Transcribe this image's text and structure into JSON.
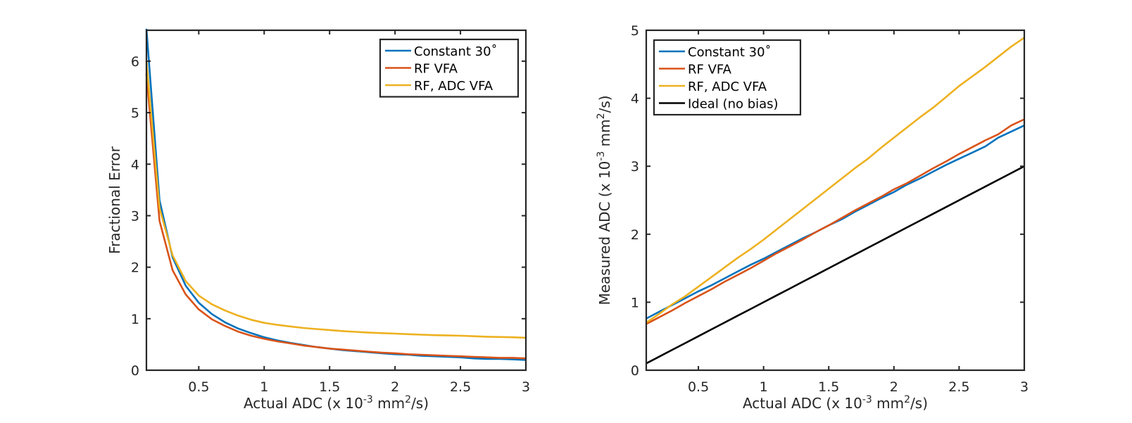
{
  "chart_data": [
    {
      "type": "line",
      "title": "",
      "xlabel": {
        "pre": "Actual ADC (x 10",
        "sup1": "-3",
        "mid": " mm",
        "sup2": "2",
        "post": "/s)"
      },
      "ylabel": "Fractional Error",
      "xlim": [
        0.1,
        3
      ],
      "ylim": [
        0,
        6.6
      ],
      "xticks": [
        "0.5",
        "1",
        "1.5",
        "2",
        "2.5",
        "3"
      ],
      "yticks": [
        "0",
        "1",
        "2",
        "3",
        "4",
        "5",
        "6"
      ],
      "grid": false,
      "legend_position": "top-right",
      "x": [
        0.1,
        0.2,
        0.3,
        0.4,
        0.5,
        0.6,
        0.7,
        0.8,
        0.9,
        1.0,
        1.1,
        1.2,
        1.3,
        1.4,
        1.5,
        1.6,
        1.7,
        1.8,
        1.9,
        2.0,
        2.1,
        2.2,
        2.3,
        2.4,
        2.5,
        2.6,
        2.7,
        2.8,
        2.9,
        3.0
      ],
      "series": [
        {
          "name": "Constant 30˚",
          "color": "#0072bd",
          "values": [
            6.63,
            3.3,
            2.19,
            1.64,
            1.31,
            1.09,
            0.93,
            0.81,
            0.72,
            0.64,
            0.58,
            0.53,
            0.49,
            0.45,
            0.42,
            0.39,
            0.37,
            0.35,
            0.33,
            0.31,
            0.3,
            0.28,
            0.27,
            0.26,
            0.25,
            0.23,
            0.22,
            0.22,
            0.21,
            0.2
          ]
        },
        {
          "name": "RF VFA",
          "color": "#d95319",
          "values": [
            5.75,
            2.9,
            1.94,
            1.47,
            1.18,
            0.99,
            0.86,
            0.75,
            0.67,
            0.61,
            0.56,
            0.52,
            0.48,
            0.45,
            0.42,
            0.4,
            0.38,
            0.36,
            0.34,
            0.33,
            0.31,
            0.3,
            0.29,
            0.28,
            0.27,
            0.26,
            0.25,
            0.24,
            0.24,
            0.23
          ]
        },
        {
          "name": "RF, ADC VFA",
          "color": "#edb120",
          "values": [
            6.0,
            3.15,
            2.23,
            1.73,
            1.45,
            1.28,
            1.16,
            1.06,
            0.98,
            0.92,
            0.88,
            0.85,
            0.82,
            0.8,
            0.78,
            0.76,
            0.745,
            0.73,
            0.72,
            0.71,
            0.7,
            0.69,
            0.68,
            0.675,
            0.67,
            0.66,
            0.65,
            0.645,
            0.64,
            0.63
          ]
        }
      ]
    },
    {
      "type": "line",
      "title": "",
      "xlabel": {
        "pre": "Actual ADC (x 10",
        "sup1": "-3",
        "mid": " mm",
        "sup2": "2",
        "post": "/s)"
      },
      "ylabel": {
        "pre": "Measured ADC (x 10",
        "sup1": "-3",
        "mid": " mm",
        "sup2": "2",
        "post": "/s)"
      },
      "xlim": [
        0.1,
        3
      ],
      "ylim": [
        0,
        5
      ],
      "xticks": [
        "0.5",
        "1",
        "1.5",
        "2",
        "2.5",
        "3"
      ],
      "yticks": [
        "0",
        "1",
        "2",
        "3",
        "4",
        "5"
      ],
      "grid": false,
      "legend_position": "top-left",
      "x": [
        0.1,
        0.2,
        0.3,
        0.4,
        0.5,
        0.6,
        0.7,
        0.8,
        0.9,
        1.0,
        1.1,
        1.2,
        1.3,
        1.4,
        1.5,
        1.6,
        1.7,
        1.8,
        1.9,
        2.0,
        2.1,
        2.2,
        2.3,
        2.4,
        2.5,
        2.6,
        2.7,
        2.8,
        2.9,
        3.0
      ],
      "series": [
        {
          "name": "Constant 30˚",
          "color": "#0072bd",
          "values": [
            0.76,
            0.86,
            0.96,
            1.06,
            1.16,
            1.25,
            1.35,
            1.45,
            1.55,
            1.64,
            1.74,
            1.84,
            1.94,
            2.03,
            2.13,
            2.22,
            2.33,
            2.43,
            2.53,
            2.62,
            2.73,
            2.82,
            2.92,
            3.02,
            3.11,
            3.2,
            3.29,
            3.42,
            3.51,
            3.6
          ]
        },
        {
          "name": "RF VFA",
          "color": "#d95319",
          "values": [
            0.68,
            0.78,
            0.88,
            0.99,
            1.09,
            1.19,
            1.3,
            1.4,
            1.5,
            1.61,
            1.72,
            1.82,
            1.92,
            2.03,
            2.13,
            2.24,
            2.35,
            2.45,
            2.55,
            2.66,
            2.75,
            2.86,
            2.97,
            3.07,
            3.18,
            3.28,
            3.38,
            3.47,
            3.6,
            3.69
          ]
        },
        {
          "name": "RF, ADC VFA",
          "color": "#edb120",
          "values": [
            0.7,
            0.83,
            0.97,
            1.09,
            1.23,
            1.37,
            1.51,
            1.65,
            1.78,
            1.92,
            2.07,
            2.22,
            2.37,
            2.52,
            2.67,
            2.82,
            2.97,
            3.11,
            3.27,
            3.42,
            3.57,
            3.72,
            3.86,
            4.02,
            4.18,
            4.32,
            4.46,
            4.61,
            4.76,
            4.89
          ]
        },
        {
          "name": "Ideal (no bias)",
          "color": "#000000",
          "values": [
            0.1,
            0.2,
            0.3,
            0.4,
            0.5,
            0.6,
            0.7,
            0.8,
            0.9,
            1.0,
            1.1,
            1.2,
            1.3,
            1.4,
            1.5,
            1.6,
            1.7,
            1.8,
            1.9,
            2.0,
            2.1,
            2.2,
            2.3,
            2.4,
            2.5,
            2.6,
            2.7,
            2.8,
            2.9,
            3.0
          ]
        }
      ]
    }
  ]
}
